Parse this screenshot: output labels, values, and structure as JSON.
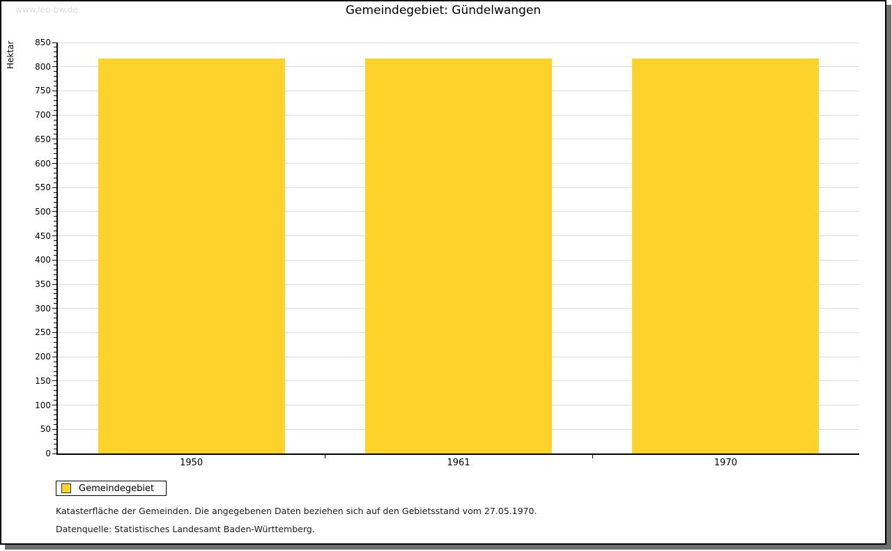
{
  "watermark": "www.leo-bw.de",
  "title": "Gemeindegebiet: Gündelwangen",
  "chart_data": {
    "type": "bar",
    "categories": [
      "1950",
      "1961",
      "1970"
    ],
    "series": [
      {
        "name": "Gemeindegebiet",
        "values": [
          817,
          817,
          817
        ]
      }
    ],
    "title": "Gemeindegebiet: Gündelwangen",
    "xlabel": "",
    "ylabel": "Hektar",
    "ylim": [
      0,
      850
    ],
    "ytick_major_step": 50,
    "ytick_minor_step": 10,
    "grid": true,
    "legend_position": "bottom-left",
    "bar_color": "#fdd32b",
    "gridline_color": "#dcdcdc"
  },
  "legend": {
    "items": [
      {
        "label": "Gemeindegebiet",
        "color": "#fdd32b"
      }
    ]
  },
  "footnotes": {
    "line1": "Katasterfläche der Gemeinden. Die angegebenen Daten beziehen sich auf den Gebietsstand vom 27.05.1970.",
    "line2": "Datenquelle: Statistisches Landesamt Baden-Württemberg."
  }
}
